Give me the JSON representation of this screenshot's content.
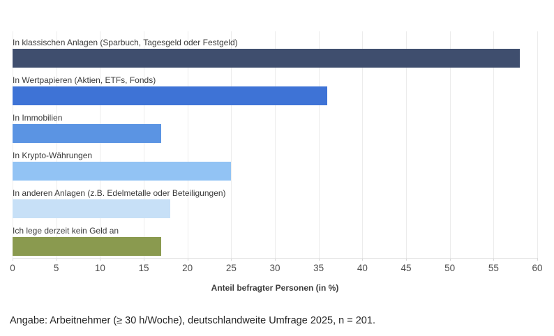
{
  "chart_data": {
    "type": "bar",
    "orientation": "horizontal",
    "title": "",
    "categories": [
      "In klassischen Anlagen (Sparbuch, Tagesgeld oder Festgeld)",
      "In Wertpapieren (Aktien, ETFs, Fonds)",
      "In Immobilien",
      "In Krypto-Währungen",
      "In anderen Anlagen (z.B. Edelmetalle oder Beteiligungen)",
      "Ich lege derzeit kein Geld an"
    ],
    "values": [
      58,
      36,
      17,
      25,
      18,
      17
    ],
    "bar_colors": [
      "#3f4e6e",
      "#3e73d6",
      "#5b94e3",
      "#92c3f4",
      "#c7e0f7",
      "#8a9a4f"
    ],
    "xlabel": "Anteil befragter Personen (in %)",
    "xlim": [
      0,
      60
    ],
    "xticks": [
      0,
      5,
      10,
      15,
      20,
      25,
      30,
      35,
      40,
      45,
      50,
      55,
      60
    ],
    "grid": true,
    "legend": "none"
  },
  "colors": {
    "gridline": "#ececec",
    "axis_line": "#e2e2e2",
    "tick_label": "#4d4d4d",
    "bar_label": "#3b3b3b",
    "axis_title": "#3d3d3d",
    "footer_text": "#242424"
  },
  "footer": {
    "note": "Angabe: Arbeitnehmer (≥ 30 h/Woche), deutschlandweite Umfrage 2025, n = 201."
  }
}
